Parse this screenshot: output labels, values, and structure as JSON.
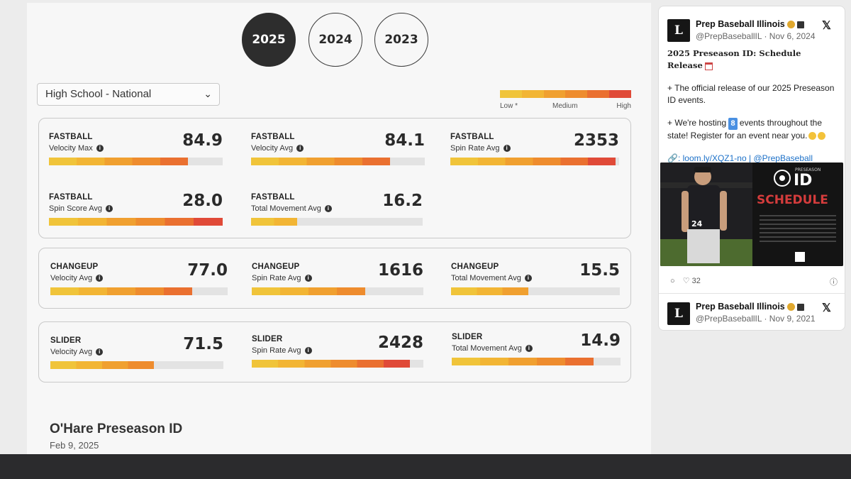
{
  "years": [
    "2025",
    "2024",
    "2023"
  ],
  "active_year": "2025",
  "filter": {
    "selected": "High School - National"
  },
  "legend": {
    "colors": [
      "#f0c43a",
      "#f2b534",
      "#f0a030",
      "#ee8c2e",
      "#ea7030",
      "#e04a38"
    ],
    "low_label": "Low",
    "low_marker": "*",
    "medium_label": "Medium",
    "high_label": "High"
  },
  "groups": [
    {
      "metrics": [
        {
          "pitch": "FASTBALL",
          "name": "Velocity Max",
          "value": "84.9",
          "level": 0.8
        },
        {
          "pitch": "FASTBALL",
          "name": "Velocity Avg",
          "value": "84.1",
          "level": 0.8
        },
        {
          "pitch": "FASTBALL",
          "name": "Spin Rate Avg",
          "value": "2353",
          "level": 0.98
        },
        {
          "pitch": "FASTBALL",
          "name": "Spin Score Avg",
          "value": "28.0",
          "level": 1.0
        },
        {
          "pitch": "FASTBALL",
          "name": "Total Movement Avg",
          "value": "16.2",
          "level": 0.27
        }
      ]
    },
    {
      "metrics": [
        {
          "pitch": "CHANGEUP",
          "name": "Velocity Avg",
          "value": "77.0",
          "level": 0.8
        },
        {
          "pitch": "CHANGEUP",
          "name": "Spin Rate Avg",
          "value": "1616",
          "level": 0.66
        },
        {
          "pitch": "CHANGEUP",
          "name": "Total Movement Avg",
          "value": "15.5",
          "level": 0.46
        }
      ]
    },
    {
      "metrics": [
        {
          "pitch": "SLIDER",
          "name": "Velocity Avg",
          "value": "71.5",
          "level": 0.6
        },
        {
          "pitch": "SLIDER",
          "name": "Spin Rate Avg",
          "value": "2428",
          "level": 0.92
        },
        {
          "pitch": "SLIDER",
          "name": "Total Movement Avg",
          "value": "14.9",
          "level": 0.84
        }
      ]
    }
  ],
  "event": {
    "title": "O'Hare Preseason ID",
    "date": "Feb 9, 2025"
  },
  "tweets": [
    {
      "name": "Prep Baseball Illinois",
      "handle": "@PrepBaseballIL · Nov 6, 2024",
      "heading": "2025 Preseason ID: Schedule Release",
      "line1": "+ The official release of our 2025 Preseason ID events.",
      "line2_a": "+ We're hosting ",
      "line2_num": "8",
      "line2_b": " events throughout the state! Register for an event near you.",
      "link_a": ": loom.ly/XQZ1-no",
      "link_sep": " | ",
      "link_b": "@PrepBaseball",
      "image_text_top": "PRESEASON",
      "image_text_id": "ID",
      "image_text_schedule": "SCHEDULE",
      "image_jersey": "24",
      "likes": "32"
    },
    {
      "name": "Prep Baseball Illinois",
      "handle": "@PrepBaseballIL · Nov 9, 2021"
    }
  ],
  "avatar_letter": "L",
  "x_logo": "𝕏"
}
